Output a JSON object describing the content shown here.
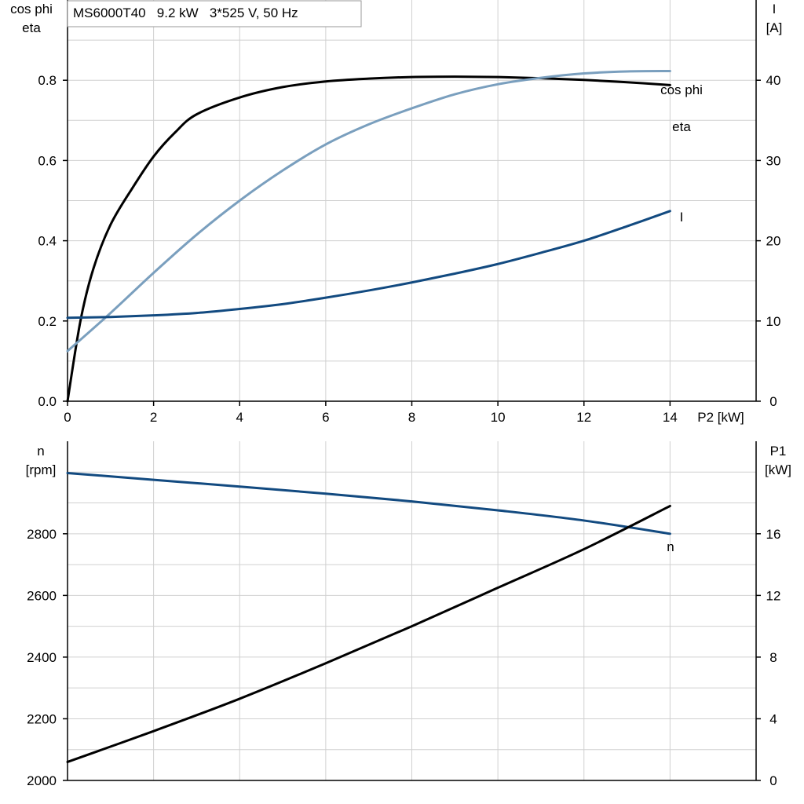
{
  "chart_data": [
    {
      "type": "line",
      "title": "MS6000T40   9.2 kW   3*525 V, 50 Hz",
      "xlabel": "P2 [kW]",
      "xlim": [
        0,
        16
      ],
      "xticks": [
        0,
        2,
        4,
        6,
        8,
        10,
        12,
        14
      ],
      "ylabel_left": [
        "cos phi",
        "eta"
      ],
      "ylim_left": [
        0,
        1.0
      ],
      "yticks_left": [
        0.0,
        0.2,
        0.4,
        0.6,
        0.8
      ],
      "ylabel_right": [
        "I",
        "[A]"
      ],
      "ylim_right": [
        0,
        50
      ],
      "yticks_right": [
        0,
        10,
        20,
        30,
        40
      ],
      "grid": true,
      "colors": {
        "eta": "#000000",
        "cos_phi": "#7a9fbe",
        "I": "#124a80"
      },
      "series": [
        {
          "name": "eta",
          "axis": "left",
          "x": [
            0,
            0.3,
            0.6,
            1,
            1.5,
            2,
            2.5,
            3,
            4,
            5,
            6,
            7,
            8,
            9,
            10,
            11,
            12,
            13,
            14
          ],
          "values": [
            0,
            0.2,
            0.33,
            0.44,
            0.53,
            0.61,
            0.67,
            0.715,
            0.757,
            0.783,
            0.797,
            0.804,
            0.808,
            0.809,
            0.808,
            0.805,
            0.801,
            0.795,
            0.788
          ]
        },
        {
          "name": "cos phi",
          "axis": "left",
          "x": [
            0,
            1,
            2,
            3,
            4,
            5,
            6,
            7,
            8,
            9,
            10,
            11,
            12,
            13,
            14
          ],
          "values": [
            0.125,
            0.22,
            0.32,
            0.415,
            0.5,
            0.575,
            0.64,
            0.69,
            0.73,
            0.765,
            0.79,
            0.806,
            0.817,
            0.822,
            0.823
          ]
        },
        {
          "name": "I",
          "axis": "right",
          "x": [
            0,
            1,
            2,
            3,
            4,
            5,
            6,
            7,
            8,
            9,
            10,
            11,
            12,
            13,
            14
          ],
          "values": [
            10.4,
            10.5,
            10.7,
            11.0,
            11.5,
            12.1,
            12.9,
            13.8,
            14.8,
            15.9,
            17.1,
            18.5,
            20.0,
            21.8,
            23.7
          ]
        }
      ]
    },
    {
      "type": "line",
      "xlim": [
        0,
        16
      ],
      "xticks": [
        0,
        2,
        4,
        6,
        8,
        10,
        12,
        14
      ],
      "ylabel_left": [
        "n",
        "[rpm]"
      ],
      "ylim_left": [
        2000,
        3100
      ],
      "yticks_left": [
        2000,
        2200,
        2400,
        2600,
        2800
      ],
      "ylabel_right": [
        "P1",
        "[kW]"
      ],
      "ylim_right": [
        0,
        22
      ],
      "yticks_right": [
        0,
        4,
        8,
        12,
        16
      ],
      "grid": true,
      "colors": {
        "n": "#124a80",
        "P1": "#000000"
      },
      "series": [
        {
          "name": "n",
          "axis": "left",
          "x": [
            0,
            2,
            4,
            6,
            8,
            10,
            12,
            14
          ],
          "values": [
            2997,
            2975,
            2953,
            2930,
            2905,
            2876,
            2843,
            2800
          ]
        },
        {
          "name": "P1",
          "axis": "right",
          "x": [
            0,
            2,
            4,
            6,
            8,
            10,
            12,
            14
          ],
          "values": [
            1.2,
            3.2,
            5.3,
            7.6,
            10.0,
            12.5,
            15.0,
            17.8
          ]
        }
      ]
    }
  ]
}
